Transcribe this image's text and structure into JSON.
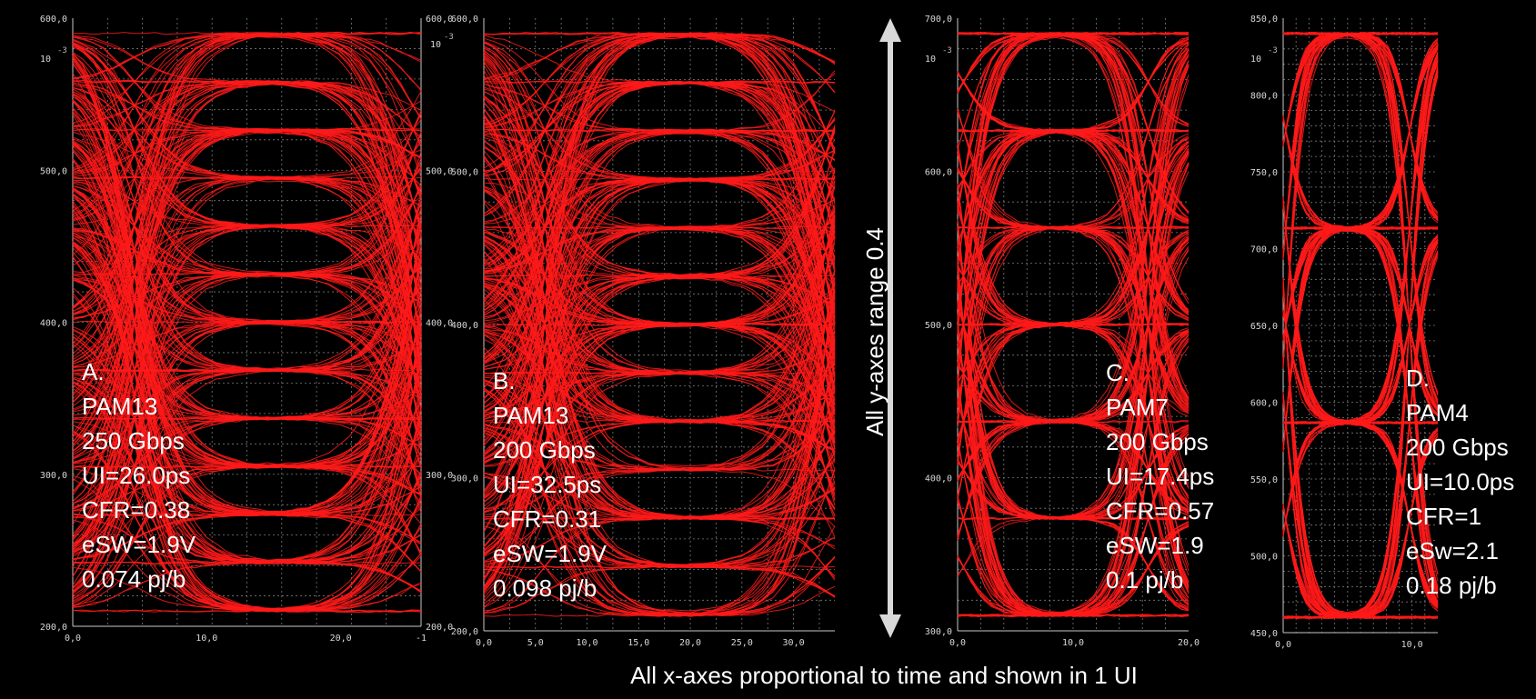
{
  "colors": {
    "background": "#000000",
    "trace": "#ff1a1a",
    "grid": "#7a7a7a",
    "axis": "#c8c8c8",
    "text": "#ffffff",
    "arrow": "#d9d9d9"
  },
  "captions": {
    "x_caption": "All x-axes proportional to time and shown in 1 UI",
    "y_caption": "All y-axes range 0.4"
  },
  "chart_data": [
    {
      "id": "A",
      "type": "line",
      "description": "eye diagram",
      "levels": 13,
      "ylim": [
        200,
        600
      ],
      "xlim": [
        0,
        26
      ],
      "x_ticks": [
        "0,0",
        "10,0",
        "20,0"
      ],
      "x_tick_values": [
        0,
        10,
        20
      ],
      "x_end_label": "-1",
      "y_ticks": [
        "200,0",
        "300,0",
        "400,0",
        "500,0",
        "600,0"
      ],
      "y_tick_values": [
        200,
        300,
        400,
        500,
        600
      ],
      "y_right_ticks": [
        "200,0",
        "300,0",
        "400,0",
        "500,0",
        "600,0"
      ],
      "exp_label": "-3",
      "exp_base": "10",
      "grid_x_step": 2.6,
      "grid_y_step": 20,
      "eye_center_x": 15,
      "annotation": [
        "A.",
        "PAM13",
        "250 Gbps",
        "UI=26.0ps",
        "CFR=0.38",
        "eSW=1.9V",
        "0.074 pj/b"
      ]
    },
    {
      "id": "B",
      "type": "line",
      "description": "eye diagram",
      "levels": 13,
      "ylim": [
        200,
        600
      ],
      "xlim": [
        0,
        34
      ],
      "x_ticks": [
        "0,0",
        "5,0",
        "10,0",
        "15,0",
        "20,0",
        "25,0",
        "30,0"
      ],
      "x_tick_values": [
        0,
        5,
        10,
        15,
        20,
        25,
        30
      ],
      "y_ticks": [
        "200,0",
        "300,0",
        "400,0",
        "500,0",
        "600,0"
      ],
      "y_tick_values": [
        200,
        300,
        400,
        500,
        600
      ],
      "grid_x_step": 2.5,
      "grid_y_step": 20,
      "eye_center_x": 19.5,
      "annotation": [
        "B.",
        "PAM13",
        "200 Gbps",
        "UI=32.5ps",
        "CFR=0.31",
        "eSW=1.9V",
        "0.098 pj/b"
      ]
    },
    {
      "id": "C",
      "type": "line",
      "description": "eye diagram",
      "levels": 7,
      "ylim": [
        300,
        700
      ],
      "xlim": [
        0,
        20
      ],
      "x_ticks": [
        "0,0",
        "10,0",
        "20,0"
      ],
      "x_tick_values": [
        0,
        10,
        20
      ],
      "y_ticks": [
        "300,0",
        "400,0",
        "500,0",
        "600,0",
        "700,0"
      ],
      "y_tick_values": [
        300,
        400,
        500,
        600,
        700
      ],
      "exp_label": "-3",
      "exp_base": "10",
      "grid_x_step": 2,
      "grid_y_step": 20,
      "eye_center_x": 8.5,
      "annotation": [
        "C.",
        "PAM7",
        "200 Gbps",
        "UI=17.4ps",
        "CFR=0.57",
        "eSW=1.9",
        "0.1 pj/b"
      ]
    },
    {
      "id": "D",
      "type": "line",
      "description": "eye diagram",
      "levels": 4,
      "ylim": [
        450,
        850
      ],
      "xlim": [
        0,
        12
      ],
      "x_ticks": [
        "0,0",
        "10,0"
      ],
      "x_tick_values": [
        0,
        10
      ],
      "y_ticks": [
        "450,0",
        "500,0",
        "550,0",
        "600,0",
        "650,0",
        "700,0",
        "750,0",
        "800,0",
        "850,0"
      ],
      "y_tick_values": [
        450,
        500,
        550,
        600,
        650,
        700,
        750,
        800,
        850
      ],
      "exp_label": "-3",
      "exp_base": "10",
      "grid_x_step": 1,
      "grid_y_step": 10,
      "eye_center_x": 5,
      "annotation": [
        "D.",
        "PAM4",
        "200 Gbps",
        "UI=10.0ps",
        "CFR=1",
        "eSw=2.1",
        "0.18 pj/b"
      ]
    }
  ]
}
